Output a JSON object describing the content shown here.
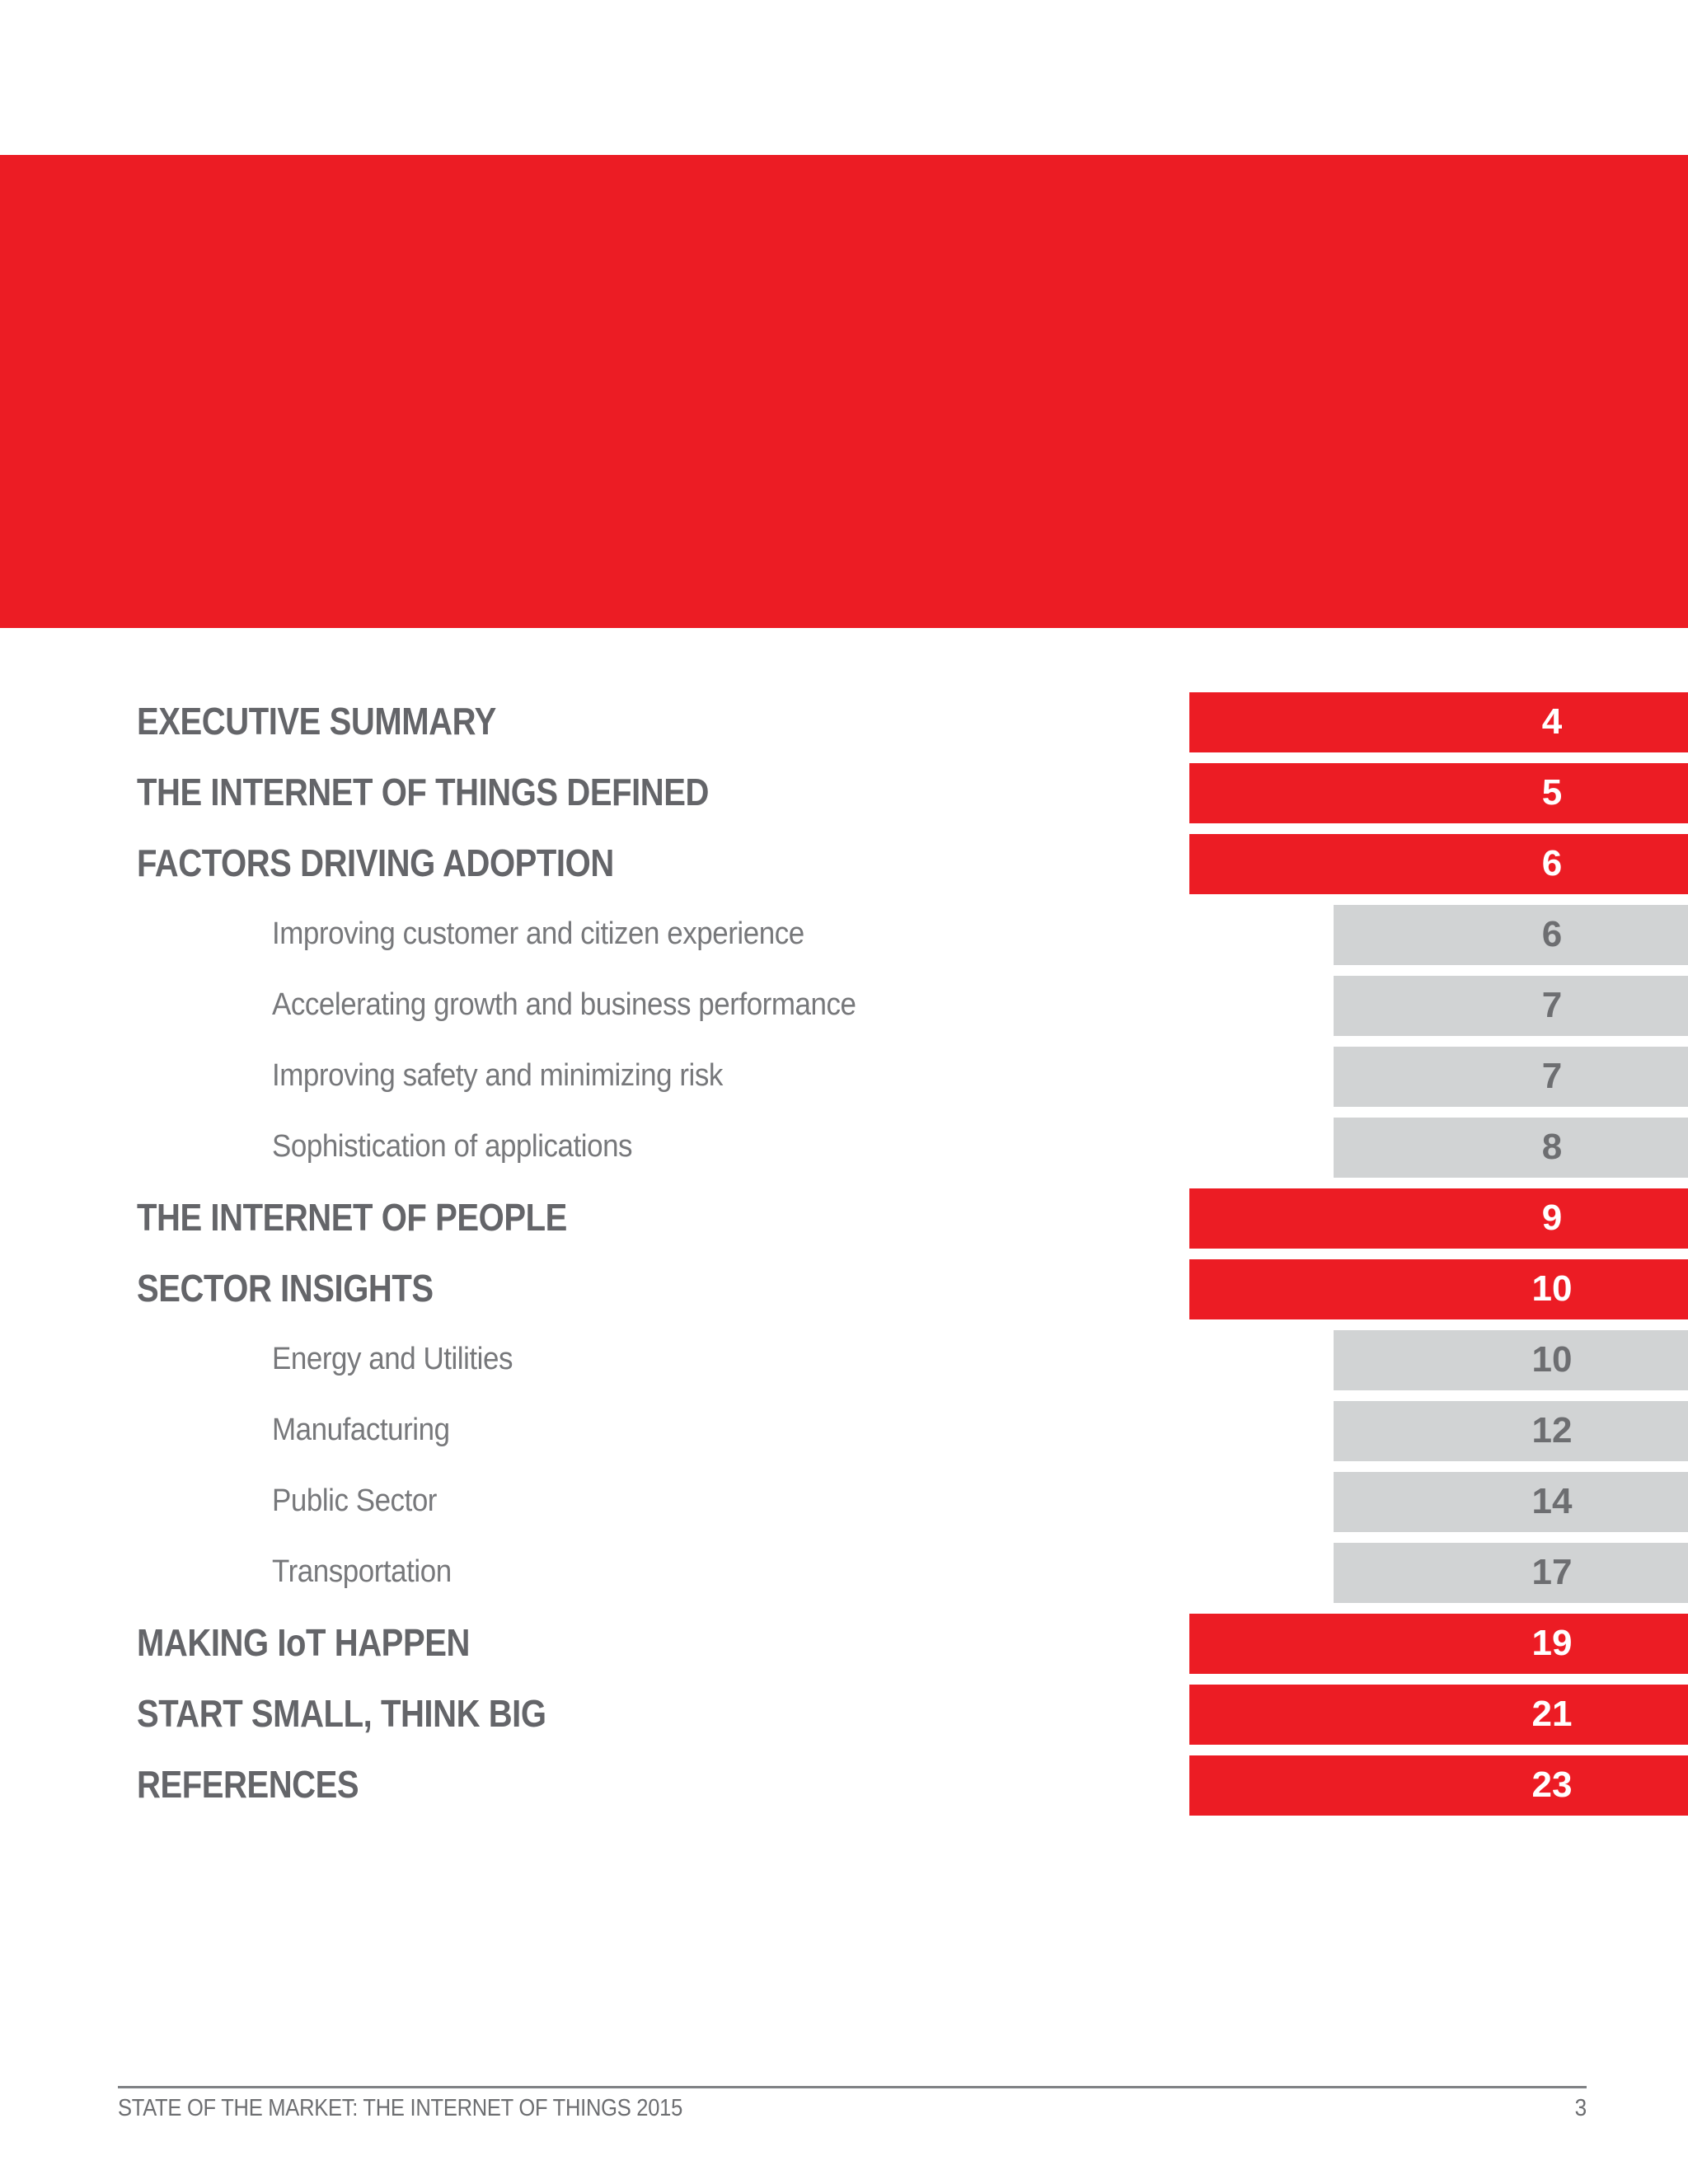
{
  "banner": {
    "color": "#EC1C24"
  },
  "colors": {
    "red": "#EC1C24",
    "gray_bar": "#D1D3D4",
    "heading_text": "#646569",
    "sub_text": "#77787B",
    "number_on_gray": "#6D6E71",
    "footer_text": "#6D6E71",
    "footer_rule": "#808285"
  },
  "toc": {
    "entries": [
      {
        "label": "EXECUTIVE SUMMARY",
        "page": "4",
        "level": 1
      },
      {
        "label": "THE INTERNET OF THINGS DEFINED",
        "page": "5",
        "level": 1
      },
      {
        "label": "FACTORS DRIVING ADOPTION",
        "page": "6",
        "level": 1
      },
      {
        "label": "Improving customer and citizen experience",
        "page": "6",
        "level": 2
      },
      {
        "label": "Accelerating growth and business performance",
        "page": "7",
        "level": 2
      },
      {
        "label": "Improving safety and minimizing risk",
        "page": "7",
        "level": 2
      },
      {
        "label": "Sophistication of applications",
        "page": "8",
        "level": 2
      },
      {
        "label": "THE INTERNET OF PEOPLE",
        "page": "9",
        "level": 1
      },
      {
        "label": "SECTOR INSIGHTS",
        "page": "10",
        "level": 1
      },
      {
        "label": "Energy and Utilities",
        "page": "10",
        "level": 2
      },
      {
        "label": "Manufacturing",
        "page": "12",
        "level": 2
      },
      {
        "label": "Public Sector",
        "page": "14",
        "level": 2
      },
      {
        "label": "Transportation",
        "page": "17",
        "level": 2
      },
      {
        "label": "MAKING IoT HAPPEN",
        "page": "19",
        "level": 1
      },
      {
        "label": "START SMALL, THINK BIG",
        "page": "21",
        "level": 1
      },
      {
        "label": "REFERENCES",
        "page": "23",
        "level": 1
      }
    ]
  },
  "footer": {
    "left_text": "STATE OF THE MARKET: THE INTERNET OF THINGS 2015",
    "page_number": "3"
  }
}
